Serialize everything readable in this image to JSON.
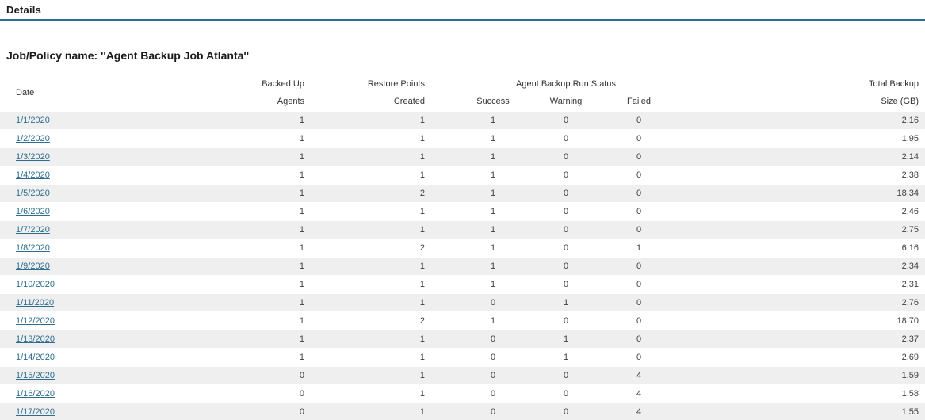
{
  "header": {
    "title": "Details"
  },
  "report": {
    "job_policy_line": "Job/Policy name: ''Agent Backup Job Atlanta''"
  },
  "colors": {
    "accent_teal": "#2c6e8f",
    "link": "#2c6e8f",
    "row_stripe": "#efefef",
    "text": "#404040"
  },
  "table": {
    "columns": {
      "date": "Date",
      "backed_up": [
        "Backed Up",
        "Agents"
      ],
      "restore_points": [
        "Restore Points",
        "Created"
      ],
      "run_status_group": "Agent Backup Run Status",
      "success": "Success",
      "warning": "Warning",
      "failed": "Failed",
      "total_backup": [
        "Total Backup",
        "Size (GB)"
      ]
    },
    "rows": [
      {
        "date": "1/1/2020",
        "backed_up_agents": "1",
        "restore_points_created": "1",
        "success": "1",
        "warning": "0",
        "failed": "0",
        "total_backup_size_gb": "2.16"
      },
      {
        "date": "1/2/2020",
        "backed_up_agents": "1",
        "restore_points_created": "1",
        "success": "1",
        "warning": "0",
        "failed": "0",
        "total_backup_size_gb": "1.95"
      },
      {
        "date": "1/3/2020",
        "backed_up_agents": "1",
        "restore_points_created": "1",
        "success": "1",
        "warning": "0",
        "failed": "0",
        "total_backup_size_gb": "2.14"
      },
      {
        "date": "1/4/2020",
        "backed_up_agents": "1",
        "restore_points_created": "1",
        "success": "1",
        "warning": "0",
        "failed": "0",
        "total_backup_size_gb": "2.38"
      },
      {
        "date": "1/5/2020",
        "backed_up_agents": "1",
        "restore_points_created": "2",
        "success": "1",
        "warning": "0",
        "failed": "0",
        "total_backup_size_gb": "18.34"
      },
      {
        "date": "1/6/2020",
        "backed_up_agents": "1",
        "restore_points_created": "1",
        "success": "1",
        "warning": "0",
        "failed": "0",
        "total_backup_size_gb": "2.46"
      },
      {
        "date": "1/7/2020",
        "backed_up_agents": "1",
        "restore_points_created": "1",
        "success": "1",
        "warning": "0",
        "failed": "0",
        "total_backup_size_gb": "2.75"
      },
      {
        "date": "1/8/2020",
        "backed_up_agents": "1",
        "restore_points_created": "2",
        "success": "1",
        "warning": "0",
        "failed": "1",
        "total_backup_size_gb": "6.16"
      },
      {
        "date": "1/9/2020",
        "backed_up_agents": "1",
        "restore_points_created": "1",
        "success": "1",
        "warning": "0",
        "failed": "0",
        "total_backup_size_gb": "2.34"
      },
      {
        "date": "1/10/2020",
        "backed_up_agents": "1",
        "restore_points_created": "1",
        "success": "1",
        "warning": "0",
        "failed": "0",
        "total_backup_size_gb": "2.31"
      },
      {
        "date": "1/11/2020",
        "backed_up_agents": "1",
        "restore_points_created": "1",
        "success": "0",
        "warning": "1",
        "failed": "0",
        "total_backup_size_gb": "2.76"
      },
      {
        "date": "1/12/2020",
        "backed_up_agents": "1",
        "restore_points_created": "2",
        "success": "1",
        "warning": "0",
        "failed": "0",
        "total_backup_size_gb": "18.70"
      },
      {
        "date": "1/13/2020",
        "backed_up_agents": "1",
        "restore_points_created": "1",
        "success": "0",
        "warning": "1",
        "failed": "0",
        "total_backup_size_gb": "2.37"
      },
      {
        "date": "1/14/2020",
        "backed_up_agents": "1",
        "restore_points_created": "1",
        "success": "0",
        "warning": "1",
        "failed": "0",
        "total_backup_size_gb": "2.69"
      },
      {
        "date": "1/15/2020",
        "backed_up_agents": "0",
        "restore_points_created": "1",
        "success": "0",
        "warning": "0",
        "failed": "4",
        "total_backup_size_gb": "1.59"
      },
      {
        "date": "1/16/2020",
        "backed_up_agents": "0",
        "restore_points_created": "1",
        "success": "0",
        "warning": "0",
        "failed": "4",
        "total_backup_size_gb": "1.58"
      },
      {
        "date": "1/17/2020",
        "backed_up_agents": "0",
        "restore_points_created": "1",
        "success": "0",
        "warning": "0",
        "failed": "4",
        "total_backup_size_gb": "1.55"
      }
    ]
  }
}
